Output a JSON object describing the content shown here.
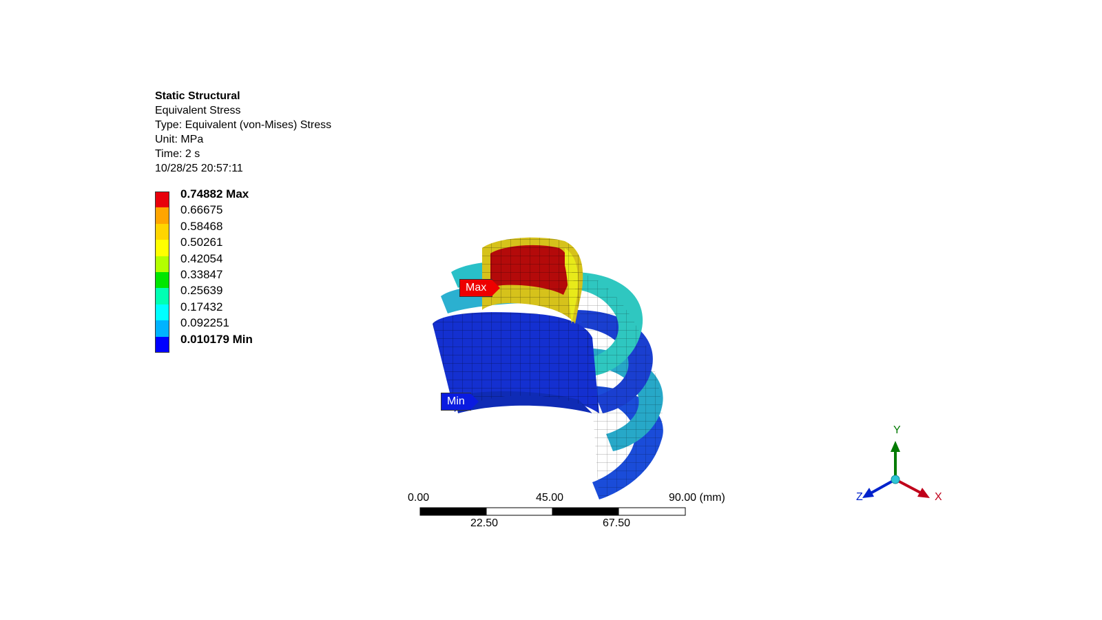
{
  "header": {
    "analysis": "Static Structural",
    "result": "Equivalent Stress",
    "type": "Type: Equivalent (von-Mises) Stress",
    "unit": "Unit: MPa",
    "time": "Time: 2 s",
    "timestamp": "10/28/25 20:57:11"
  },
  "legend": {
    "entries": [
      {
        "value": "0.74882",
        "suffix": " Max",
        "color": "#e8000b"
      },
      {
        "value": "0.66675",
        "suffix": "",
        "color": "#ffa500"
      },
      {
        "value": "0.58468",
        "suffix": "",
        "color": "#ffd500"
      },
      {
        "value": "0.50261",
        "suffix": "",
        "color": "#ffff00"
      },
      {
        "value": "0.42054",
        "suffix": "",
        "color": "#b3ff00"
      },
      {
        "value": "0.33847",
        "suffix": "",
        "color": "#00e600"
      },
      {
        "value": "0.25639",
        "suffix": "",
        "color": "#00ffb3"
      },
      {
        "value": "0.17432",
        "suffix": "",
        "color": "#00ffff"
      },
      {
        "value": "0.092251",
        "suffix": "",
        "color": "#00b3ff"
      },
      {
        "value": "0.010179",
        "suffix": " Min",
        "color": "#0000ff"
      }
    ]
  },
  "probes": {
    "max_label": "Max",
    "min_label": "Min"
  },
  "scale_bar": {
    "top_labels": [
      "0.00",
      "45.00",
      "90.00 (mm)"
    ],
    "bottom_labels": [
      "22.50",
      "67.50"
    ]
  },
  "triad": {
    "x_label": "X",
    "y_label": "Y",
    "z_label": "Z",
    "x_color": "#c0001a",
    "y_color": "#007a00",
    "z_color": "#0022cc"
  }
}
